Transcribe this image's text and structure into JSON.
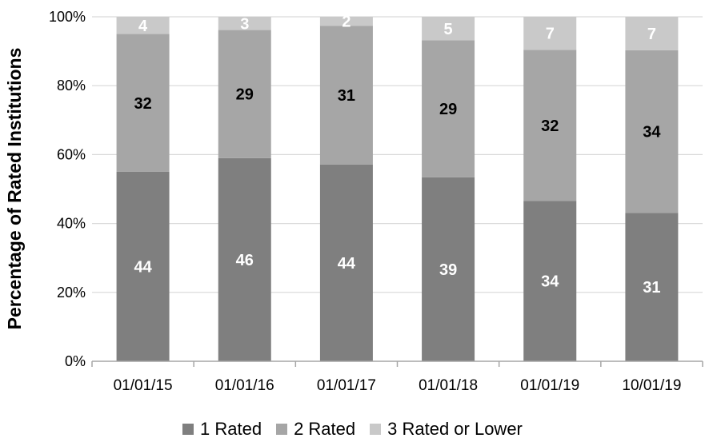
{
  "chart_data": {
    "type": "bar",
    "stacked": "percent",
    "categories": [
      "01/01/15",
      "01/01/16",
      "01/01/17",
      "01/01/18",
      "01/01/19",
      "10/01/19"
    ],
    "series": [
      {
        "name": "1 Rated",
        "values": [
          44,
          46,
          44,
          39,
          34,
          31
        ],
        "color": "#7f7f7f",
        "label_color": "#ffffff"
      },
      {
        "name": "2 Rated",
        "values": [
          32,
          29,
          31,
          29,
          32,
          34
        ],
        "color": "#a6a6a6",
        "label_color": "#000000"
      },
      {
        "name": "3 Rated or Lower",
        "values": [
          4,
          3,
          2,
          5,
          7,
          7
        ],
        "color": "#c9c9c9",
        "label_color": "#ffffff"
      }
    ],
    "title": "",
    "xlabel": "",
    "ylabel": "Percentage of Rated Institutions",
    "ylim": [
      0,
      100
    ],
    "yticks": [
      "0%",
      "20%",
      "40%",
      "60%",
      "80%",
      "100%"
    ],
    "grid": true,
    "legend_position": "bottom"
  }
}
